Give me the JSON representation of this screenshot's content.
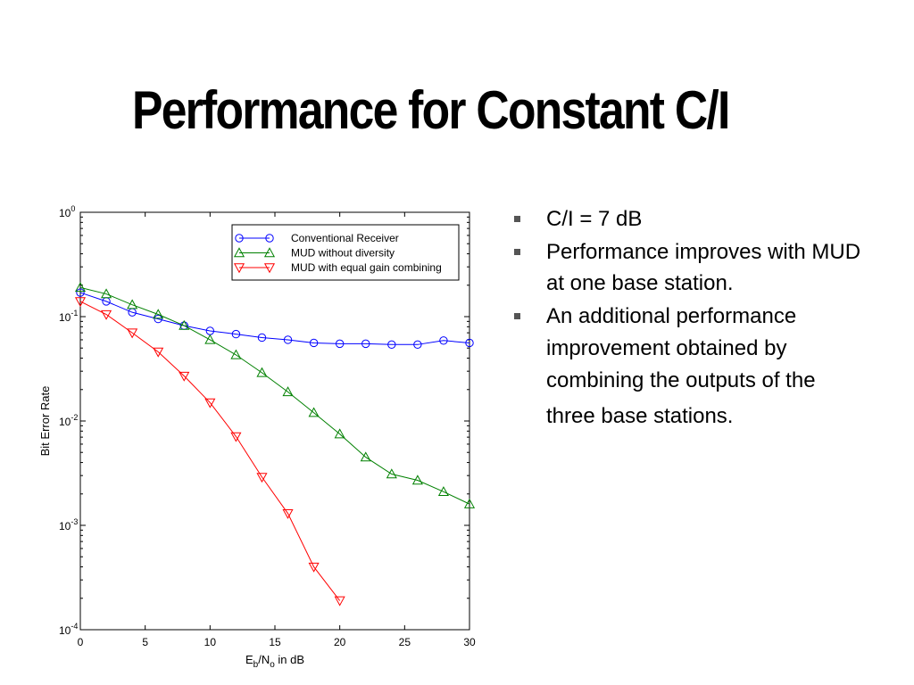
{
  "slide": {
    "title": "Performance for Constant C/I",
    "bullets": [
      "C/I = 7 dB",
      "Performance improves with MUD at one base station.",
      "An additional performance improvement obtained by combining the outputs of the",
      "three base stations."
    ]
  },
  "chart_data": {
    "type": "line",
    "title": "",
    "xlabel": "E_b/N_o in dB",
    "ylabel": "Bit Error Rate",
    "xlim": [
      0,
      30
    ],
    "ylim": [
      0.0001,
      1
    ],
    "yscale": "log",
    "xticks": [
      0,
      5,
      10,
      15,
      20,
      25,
      30
    ],
    "yticks": [
      {
        "base": "10",
        "exp": "0"
      },
      {
        "base": "10",
        "exp": "-1"
      },
      {
        "base": "10",
        "exp": "-2"
      },
      {
        "base": "10",
        "exp": "-3"
      },
      {
        "base": "10",
        "exp": "-4"
      }
    ],
    "grid": false,
    "legend": "top-right",
    "series": [
      {
        "name": "Conventional Receiver",
        "color": "#0000ff",
        "marker": "circle",
        "x": [
          0,
          2,
          4,
          6,
          8,
          10,
          12,
          14,
          16,
          18,
          20,
          22,
          24,
          26,
          28,
          30
        ],
        "y": [
          0.17,
          0.14,
          0.11,
          0.095,
          0.082,
          0.073,
          0.068,
          0.063,
          0.06,
          0.056,
          0.055,
          0.055,
          0.054,
          0.054,
          0.059,
          0.056
        ]
      },
      {
        "name": "MUD without diversity",
        "color": "#008000",
        "marker": "triangle-up",
        "x": [
          0,
          2,
          4,
          6,
          8,
          10,
          12,
          14,
          16,
          18,
          20,
          22,
          24,
          26,
          28,
          30
        ],
        "y": [
          0.19,
          0.165,
          0.13,
          0.105,
          0.082,
          0.06,
          0.043,
          0.029,
          0.019,
          0.012,
          0.0075,
          0.0045,
          0.0031,
          0.0027,
          0.0021,
          0.0016
        ]
      },
      {
        "name": "MUD with equal gain combining",
        "color": "#ff0000",
        "marker": "triangle-down",
        "x": [
          0,
          2,
          4,
          6,
          8,
          10,
          12,
          14,
          16,
          18,
          20
        ],
        "y": [
          0.14,
          0.105,
          0.07,
          0.046,
          0.027,
          0.015,
          0.0071,
          0.0029,
          0.0013,
          0.0004,
          0.00019
        ]
      }
    ]
  }
}
